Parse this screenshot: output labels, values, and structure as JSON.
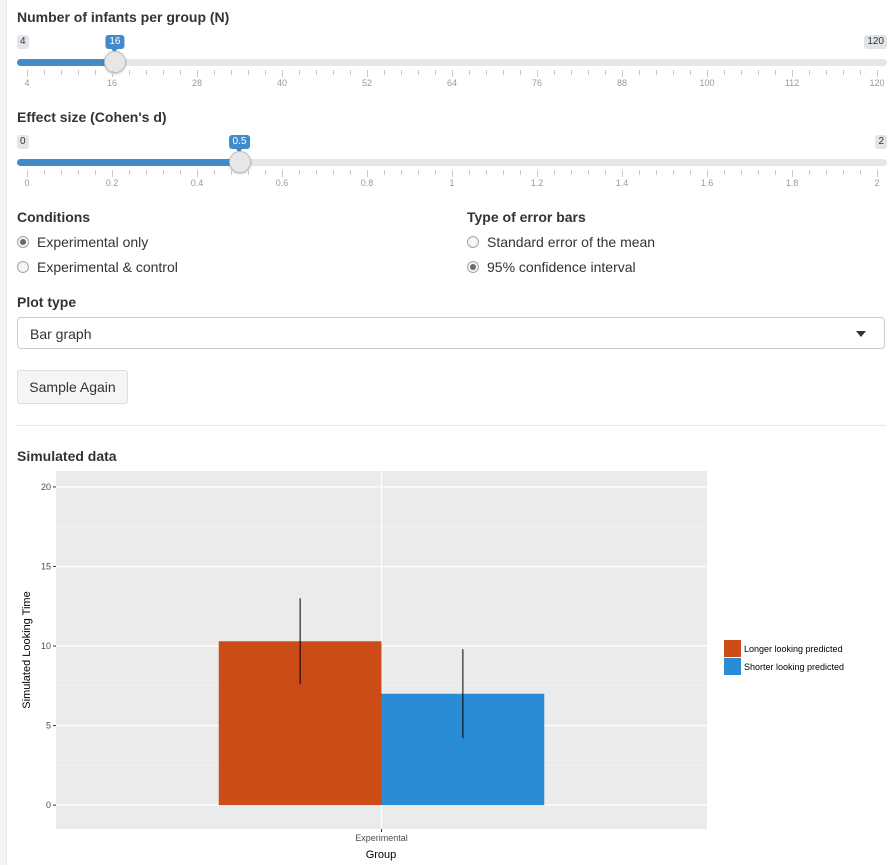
{
  "sliders": {
    "n": {
      "label": "Number of infants per group (N)",
      "min_label": "4",
      "max_label": "120",
      "value_label": "16",
      "min": 4,
      "max": 120,
      "value": 16,
      "ticks": [
        "4",
        "16",
        "28",
        "40",
        "52",
        "64",
        "76",
        "88",
        "100",
        "112",
        "120"
      ]
    },
    "d": {
      "label": "Effect size (Cohen's d)",
      "min_label": "0",
      "max_label": "2",
      "value_label": "0.5",
      "min": 0,
      "max": 2,
      "value": 0.5,
      "ticks": [
        "0",
        "0.2",
        "0.4",
        "0.6",
        "0.8",
        "1",
        "1.2",
        "1.4",
        "1.6",
        "1.8",
        "2"
      ]
    }
  },
  "conditions": {
    "label": "Conditions",
    "options": [
      "Experimental only",
      "Experimental & control"
    ],
    "selected": 0
  },
  "error_bars": {
    "label": "Type of error bars",
    "options": [
      "Standard error of the mean",
      "95% confidence interval"
    ],
    "selected": 1
  },
  "plot_type": {
    "label": "Plot type",
    "value": "Bar graph"
  },
  "sample_button": "Sample Again",
  "output": {
    "title": "Simulated data"
  },
  "chart_data": {
    "type": "bar",
    "xlabel": "Group",
    "ylabel": "Simulated Looking Time",
    "categories": [
      "Experimental"
    ],
    "ylim": [
      -1.5,
      21
    ],
    "yticks": [
      0,
      5,
      10,
      15,
      20
    ],
    "grid": true,
    "legend_position": "right",
    "series": [
      {
        "name": "Longer looking predicted",
        "color": "#cc4c18",
        "values": [
          10.3
        ],
        "err_low": [
          7.6
        ],
        "err_high": [
          13.0
        ]
      },
      {
        "name": "Shorter looking predicted",
        "color": "#2a8cd5",
        "values": [
          7.0
        ],
        "err_low": [
          4.2
        ],
        "err_high": [
          9.8
        ]
      }
    ]
  }
}
